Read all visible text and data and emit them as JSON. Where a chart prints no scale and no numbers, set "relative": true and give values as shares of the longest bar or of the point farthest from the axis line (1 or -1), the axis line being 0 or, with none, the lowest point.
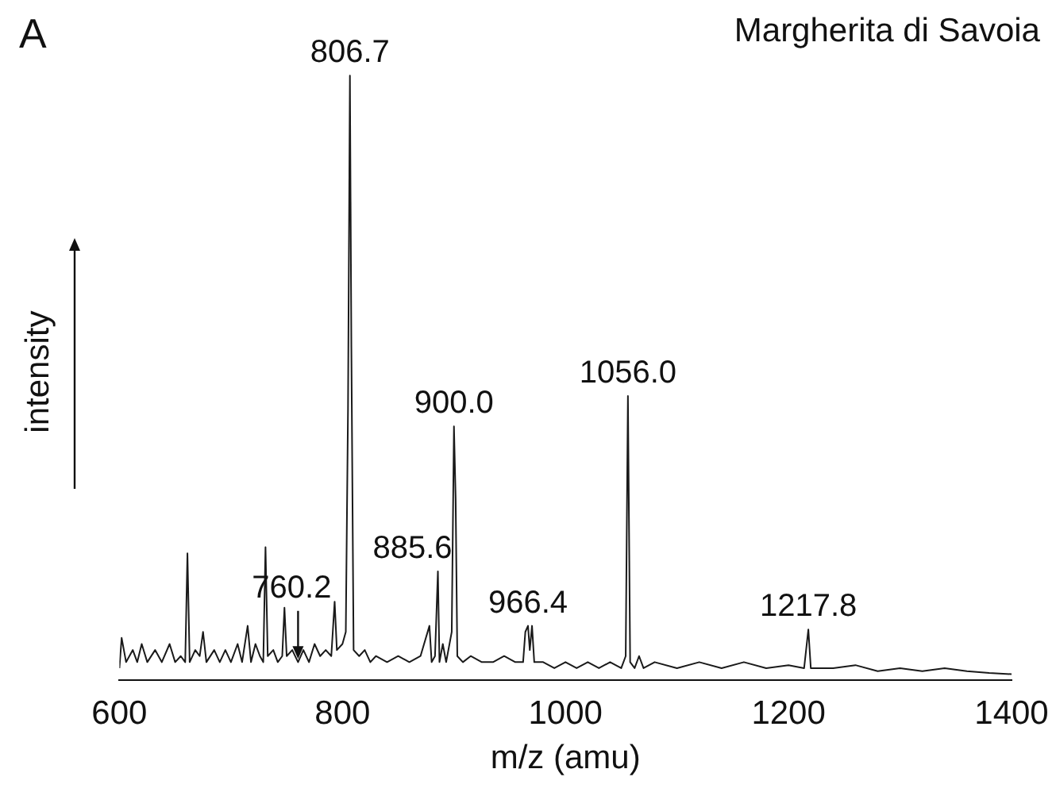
{
  "chart_data": {
    "type": "line",
    "title": "Margherita di Savoia",
    "xlabel": "m/z (amu)",
    "ylabel": "intensity",
    "relative": true,
    "color": "#1a1a1a",
    "marker": "none",
    "grid": false,
    "xlim": [
      600,
      1400
    ],
    "xticks": [
      600,
      800,
      1000,
      1200,
      1400
    ],
    "x": [
      600,
      602,
      606,
      612,
      616,
      620,
      625,
      632,
      638,
      645,
      650,
      655,
      659,
      661,
      663,
      668,
      672,
      675,
      678,
      685,
      690,
      695,
      700,
      706,
      710,
      715,
      718,
      722,
      726,
      729,
      731,
      733,
      738,
      742,
      746,
      748,
      750,
      755,
      760.2,
      765,
      770,
      775,
      780,
      785,
      790,
      793,
      795,
      800,
      803,
      805,
      806.7,
      808,
      810,
      815,
      820,
      825,
      830,
      840,
      850,
      860,
      870,
      878,
      880,
      883,
      885.6,
      887,
      890,
      893,
      898,
      900,
      901.5,
      903,
      908,
      915,
      925,
      935,
      945,
      955,
      962,
      964,
      966.4,
      968,
      970,
      972,
      980,
      990,
      1000,
      1010,
      1020,
      1030,
      1040,
      1050,
      1054,
      1056,
      1058,
      1062,
      1066,
      1070,
      1080,
      1100,
      1120,
      1140,
      1160,
      1180,
      1200,
      1214,
      1217.8,
      1220,
      1240,
      1260,
      1280,
      1300,
      1320,
      1340,
      1360,
      1380,
      1400
    ],
    "values": [
      0.02,
      0.07,
      0.03,
      0.05,
      0.03,
      0.06,
      0.03,
      0.05,
      0.03,
      0.06,
      0.03,
      0.04,
      0.03,
      0.21,
      0.03,
      0.05,
      0.04,
      0.08,
      0.03,
      0.05,
      0.03,
      0.05,
      0.03,
      0.06,
      0.03,
      0.09,
      0.03,
      0.06,
      0.04,
      0.03,
      0.22,
      0.04,
      0.05,
      0.03,
      0.04,
      0.12,
      0.04,
      0.05,
      0.03,
      0.05,
      0.03,
      0.06,
      0.04,
      0.05,
      0.04,
      0.13,
      0.05,
      0.06,
      0.08,
      0.45,
      1,
      0.55,
      0.05,
      0.04,
      0.05,
      0.03,
      0.04,
      0.03,
      0.04,
      0.03,
      0.04,
      0.09,
      0.03,
      0.04,
      0.18,
      0.03,
      0.06,
      0.03,
      0.08,
      0.42,
      0.3,
      0.04,
      0.03,
      0.04,
      0.03,
      0.03,
      0.04,
      0.03,
      0.03,
      0.08,
      0.09,
      0.05,
      0.09,
      0.03,
      0.03,
      0.02,
      0.03,
      0.02,
      0.03,
      0.02,
      0.03,
      0.02,
      0.04,
      0.47,
      0.03,
      0.02,
      0.04,
      0.02,
      0.03,
      0.02,
      0.03,
      0.02,
      0.03,
      0.02,
      0.025,
      0.02,
      0.084,
      0.02,
      0.02,
      0.025,
      0.015,
      0.02,
      0.015,
      0.02,
      0.015,
      0.012,
      0.01
    ],
    "annotations": [
      "A",
      {
        "text": "806.7",
        "x": 806.7,
        "y": 1
      },
      {
        "text": "760.2",
        "x": 760.2,
        "y": 0.03
      },
      {
        "text": "885.6",
        "x": 885.6,
        "y": 0.18
      },
      {
        "text": "900.0",
        "x": 900,
        "y": 0.42
      },
      {
        "text": "966.4",
        "x": 966.4,
        "y": 0.09
      },
      {
        "text": "1056.0",
        "x": 1056,
        "y": 0.47
      },
      {
        "text": "1217.8",
        "x": 1217.8,
        "y": 0.084
      }
    ]
  }
}
